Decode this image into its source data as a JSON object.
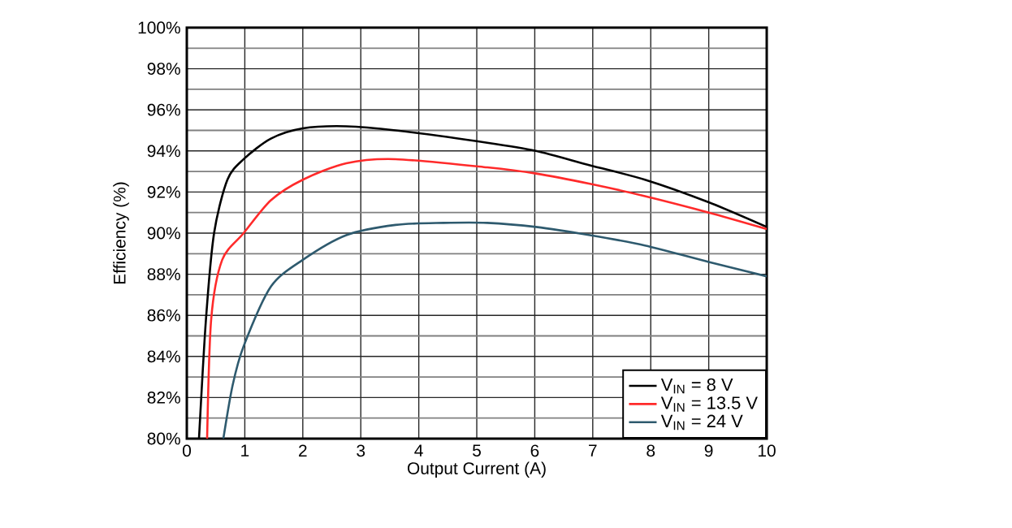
{
  "chart_data": {
    "type": "line",
    "xlabel": "Output Current (A)",
    "ylabel": "Efficiency (%)",
    "xlim": [
      0,
      10
    ],
    "ylim": [
      80,
      100
    ],
    "xticks": [
      0,
      1,
      2,
      3,
      4,
      5,
      6,
      7,
      8,
      9,
      10
    ],
    "yticks": [
      {
        "value": 80,
        "label": "80%"
      },
      {
        "value": 82,
        "label": "82%"
      },
      {
        "value": 84,
        "label": "84%"
      },
      {
        "value": 86,
        "label": "86%"
      },
      {
        "value": 88,
        "label": "88%"
      },
      {
        "value": 90,
        "label": "90%"
      },
      {
        "value": 92,
        "label": "92%"
      },
      {
        "value": 94,
        "label": "94%"
      },
      {
        "value": 96,
        "label": "96%"
      },
      {
        "value": 98,
        "label": "98%"
      },
      {
        "value": 100,
        "label": "100%"
      }
    ],
    "grid": true,
    "legend": "bottom right",
    "marker": "none",
    "line_style": "solid",
    "series": [
      {
        "name": "V$_{IN}$ = 8 V",
        "color": "#000000",
        "x": [
          0.21,
          0.33,
          0.47,
          0.7,
          0.98,
          1.45,
          2.0,
          2.75,
          3.6,
          5.18,
          6.02,
          6.95,
          7.9,
          9.0,
          10.0
        ],
        "values": [
          80,
          85.8,
          90.0,
          92.6,
          93.6,
          94.6,
          95.1,
          95.2,
          95.0,
          94.4,
          94.0,
          93.3,
          92.6,
          91.5,
          90.3
        ]
      },
      {
        "name": "V$_{IN}$ = 13.5 V",
        "color": "#ff2a2a",
        "x": [
          0.35,
          0.42,
          0.61,
          0.98,
          1.45,
          2.0,
          2.75,
          3.6,
          5.18,
          6.02,
          6.95,
          7.9,
          9.0,
          10.0
        ],
        "values": [
          80,
          85.8,
          88.7,
          90.0,
          91.6,
          92.6,
          93.4,
          93.6,
          93.2,
          92.9,
          92.4,
          91.8,
          91.0,
          90.2
        ]
      },
      {
        "name": "V$_{IN}$ = 24 V",
        "color": "#2e5a6e",
        "x": [
          0.63,
          0.79,
          0.98,
          1.45,
          2.0,
          2.75,
          3.6,
          4.43,
          5.18,
          6.02,
          6.95,
          7.9,
          9.0,
          10.0
        ],
        "values": [
          80,
          82.6,
          84.5,
          87.4,
          88.7,
          89.9,
          90.4,
          90.5,
          90.5,
          90.3,
          89.9,
          89.4,
          88.6,
          87.9
        ]
      }
    ]
  }
}
